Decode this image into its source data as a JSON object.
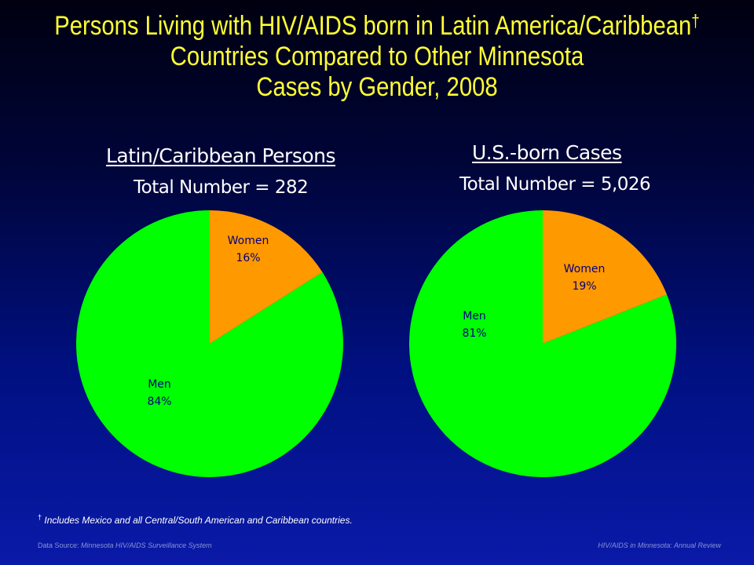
{
  "slide": {
    "title_line1": "Persons Living with HIV/AIDS born in Latin America/Caribbean",
    "title_dagger": "†",
    "title_line2": "Countries Compared to Other Minnesota",
    "title_line3": "Cases by Gender, 2008"
  },
  "chart_data": [
    {
      "type": "pie",
      "title": "Latin/Caribbean Persons",
      "subtitle": "Total Number = 282",
      "categories": [
        "Women",
        "Men"
      ],
      "values": [
        16,
        84
      ],
      "value_labels": [
        "16%",
        "84%"
      ],
      "colors": [
        "#ff9900",
        "#00ff00"
      ]
    },
    {
      "type": "pie",
      "title": "U.S.-born Cases",
      "subtitle": "Total Number = 5,026",
      "categories": [
        "Women",
        "Men"
      ],
      "values": [
        19,
        81
      ],
      "value_labels": [
        "19%",
        "81%"
      ],
      "colors": [
        "#ff9900",
        "#00ff00"
      ]
    }
  ],
  "footnote": {
    "marker": "†",
    "text": "Includes Mexico and all Central/South American and Caribbean countries."
  },
  "footer": {
    "source_prefix": "Data Source: ",
    "source_name": "Minnesota HIV/AIDS Surveillance  System",
    "publication": "HIV/AIDS in Minnesota: Annual Review"
  }
}
